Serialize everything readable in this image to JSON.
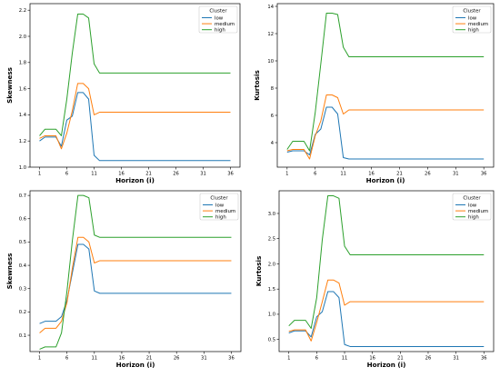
{
  "chart_data": [
    {
      "type": "line",
      "xlabel": "Horizon (i)",
      "ylabel": "Skewness",
      "x": [
        1,
        2,
        3,
        4,
        5,
        6,
        7,
        8,
        9,
        10,
        11,
        12,
        36
      ],
      "xticks": [
        1,
        6,
        11,
        16,
        21,
        26,
        31,
        36
      ],
      "ylim": [
        1.0,
        2.25
      ],
      "yticks": [
        1.0,
        1.2,
        1.4,
        1.6,
        1.8,
        2.0,
        2.2
      ],
      "ytick_labels": [
        "1.0",
        "1.2",
        "1.4",
        "1.6",
        "1.8",
        "2.0",
        "2.2"
      ],
      "legend_title": "Cluster",
      "legend_position": "top-right",
      "series": [
        {
          "name": "low",
          "color": "#1f77b4",
          "values": [
            1.2,
            1.23,
            1.23,
            1.23,
            1.16,
            1.36,
            1.39,
            1.57,
            1.57,
            1.52,
            1.09,
            1.05,
            1.05
          ]
        },
        {
          "name": "medium",
          "color": "#ff7f0e",
          "values": [
            1.22,
            1.24,
            1.24,
            1.24,
            1.14,
            1.26,
            1.43,
            1.64,
            1.64,
            1.6,
            1.4,
            1.42,
            1.42
          ]
        },
        {
          "name": "high",
          "color": "#2ca02c",
          "values": [
            1.24,
            1.29,
            1.29,
            1.29,
            1.24,
            1.52,
            1.87,
            2.17,
            2.17,
            2.14,
            1.79,
            1.72,
            1.72
          ]
        }
      ]
    },
    {
      "type": "line",
      "xlabel": "Horizon (i)",
      "ylabel": "Kurtosis",
      "x": [
        1,
        2,
        3,
        4,
        5,
        6,
        7,
        8,
        9,
        10,
        11,
        12,
        36
      ],
      "xticks": [
        1,
        6,
        11,
        16,
        21,
        26,
        31,
        36
      ],
      "ylim": [
        2.2,
        14.2
      ],
      "yticks": [
        4,
        6,
        8,
        10,
        12,
        14
      ],
      "ytick_labels": [
        "4",
        "6",
        "8",
        "10",
        "12",
        "14"
      ],
      "legend_title": "Cluster",
      "legend_position": "top-right",
      "series": [
        {
          "name": "low",
          "color": "#1f77b4",
          "values": [
            3.3,
            3.4,
            3.4,
            3.4,
            3.1,
            4.6,
            5.0,
            6.6,
            6.6,
            6.1,
            2.9,
            2.8,
            2.8
          ]
        },
        {
          "name": "medium",
          "color": "#ff7f0e",
          "values": [
            3.4,
            3.5,
            3.5,
            3.5,
            2.8,
            4.5,
            5.6,
            7.5,
            7.5,
            7.3,
            6.1,
            6.4,
            6.4
          ]
        },
        {
          "name": "high",
          "color": "#2ca02c",
          "values": [
            3.5,
            4.1,
            4.1,
            4.1,
            3.4,
            6.2,
            9.8,
            13.5,
            13.5,
            13.4,
            11.0,
            10.3,
            10.3
          ]
        }
      ]
    },
    {
      "type": "line",
      "xlabel": "Horizon (i)",
      "ylabel": "Skewness",
      "x": [
        1,
        2,
        3,
        4,
        5,
        6,
        7,
        8,
        9,
        10,
        11,
        12,
        36
      ],
      "xticks": [
        1,
        6,
        11,
        16,
        21,
        26,
        31,
        36
      ],
      "ylim": [
        0.03,
        0.72
      ],
      "yticks": [
        0.1,
        0.2,
        0.3,
        0.4,
        0.5,
        0.6,
        0.7
      ],
      "ytick_labels": [
        "0.1",
        "0.2",
        "0.3",
        "0.4",
        "0.5",
        "0.6",
        "0.7"
      ],
      "legend_title": "Cluster",
      "legend_position": "top-right",
      "series": [
        {
          "name": "low",
          "color": "#1f77b4",
          "values": [
            0.15,
            0.16,
            0.16,
            0.16,
            0.18,
            0.25,
            0.37,
            0.49,
            0.49,
            0.47,
            0.29,
            0.28,
            0.28
          ]
        },
        {
          "name": "medium",
          "color": "#ff7f0e",
          "values": [
            0.11,
            0.13,
            0.13,
            0.13,
            0.16,
            0.24,
            0.39,
            0.52,
            0.52,
            0.5,
            0.41,
            0.42,
            0.42
          ]
        },
        {
          "name": "high",
          "color": "#2ca02c",
          "values": [
            0.04,
            0.05,
            0.05,
            0.05,
            0.11,
            0.29,
            0.51,
            0.7,
            0.7,
            0.69,
            0.53,
            0.52,
            0.52
          ]
        }
      ]
    },
    {
      "type": "line",
      "xlabel": "Horizon (i)",
      "ylabel": "Kurtosis",
      "x": [
        1,
        2,
        3,
        4,
        5,
        6,
        7,
        8,
        9,
        10,
        11,
        12,
        36
      ],
      "xticks": [
        1,
        6,
        11,
        16,
        21,
        26,
        31,
        36
      ],
      "ylim": [
        0.26,
        3.45
      ],
      "yticks": [
        0.5,
        1.0,
        1.5,
        2.0,
        2.5,
        3.0
      ],
      "ytick_labels": [
        "0.5",
        "1.0",
        "1.5",
        "2.0",
        "2.5",
        "3.0"
      ],
      "legend_title": "Cluster",
      "legend_position": "top-right",
      "series": [
        {
          "name": "low",
          "color": "#1f77b4",
          "values": [
            0.63,
            0.67,
            0.67,
            0.67,
            0.55,
            0.95,
            1.05,
            1.45,
            1.45,
            1.33,
            0.4,
            0.36,
            0.36
          ]
        },
        {
          "name": "medium",
          "color": "#ff7f0e",
          "values": [
            0.66,
            0.69,
            0.69,
            0.69,
            0.47,
            0.84,
            1.25,
            1.68,
            1.68,
            1.62,
            1.18,
            1.25,
            1.25
          ]
        },
        {
          "name": "high",
          "color": "#2ca02c",
          "values": [
            0.77,
            0.88,
            0.88,
            0.88,
            0.72,
            1.33,
            2.48,
            3.35,
            3.35,
            3.3,
            2.35,
            2.18,
            2.18
          ]
        }
      ]
    }
  ]
}
